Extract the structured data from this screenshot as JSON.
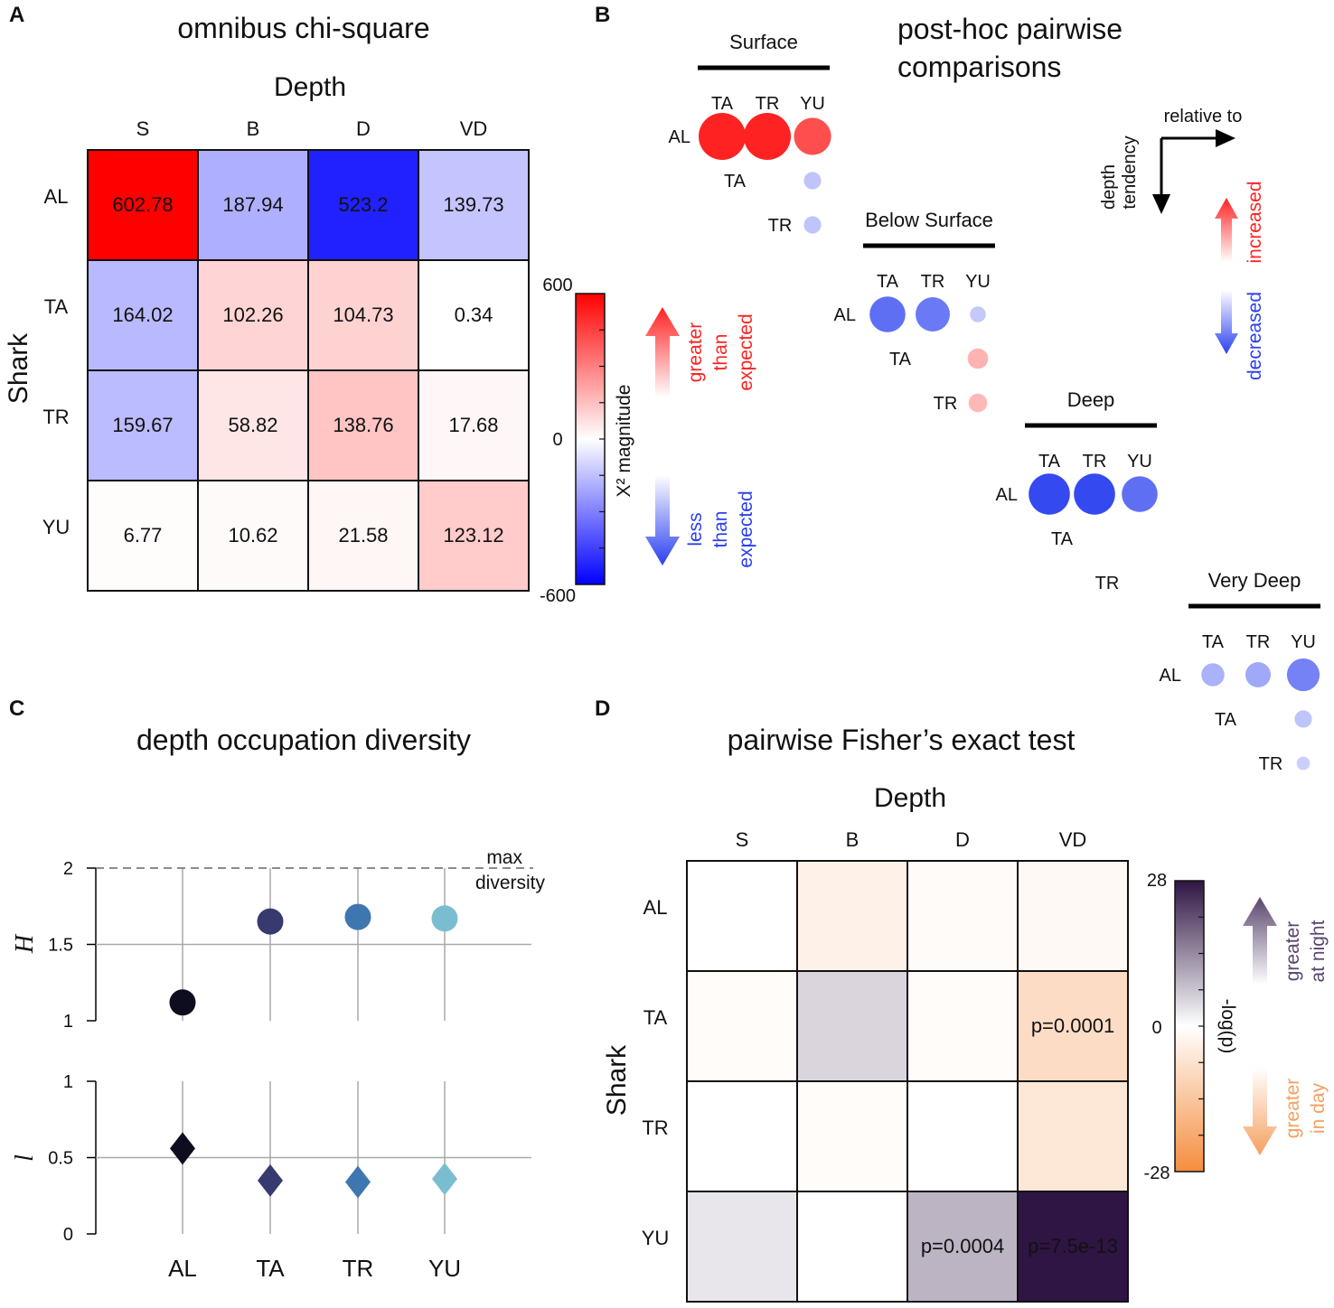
{
  "chart_data": [
    {
      "panel": "A",
      "type": "heatmap",
      "title": "omnibus chi-square",
      "xlabel": "Depth",
      "ylabel": "Shark",
      "columns": [
        "S",
        "B",
        "D",
        "VD"
      ],
      "rows": [
        "AL",
        "TA",
        "TR",
        "YU"
      ],
      "values": [
        [
          602.78,
          -187.94,
          -523.2,
          -139.73
        ],
        [
          -164.02,
          102.26,
          104.73,
          0.34
        ],
        [
          -159.67,
          58.82,
          138.76,
          17.68
        ],
        [
          6.77,
          10.62,
          21.58,
          123.12
        ]
      ],
      "cell_labels": [
        [
          "602.78",
          "187.94",
          "523.2",
          "139.73"
        ],
        [
          "164.02",
          "102.26",
          "104.73",
          "0.34"
        ],
        [
          "159.67",
          "58.82",
          "138.76",
          "17.68"
        ],
        [
          "6.77",
          "10.62",
          "21.58",
          "123.12"
        ]
      ],
      "colorbar": {
        "title": "X² magnitude",
        "max_label": "600",
        "mid_label": "0",
        "min_label": "-600",
        "range": [
          -600,
          600
        ],
        "colors": {
          "high": "#ff0000",
          "mid": "#ffffff",
          "low": "#0000ff"
        }
      },
      "arrow_up_text": [
        "greater",
        "than",
        "expected"
      ],
      "arrow_down_text": [
        "less",
        "than",
        "expected"
      ],
      "arrow_up_color": "#ff2222",
      "arrow_down_color": "#2a3ff0"
    },
    {
      "panel": "B",
      "type": "scatter",
      "title": [
        "post-hoc pairwise",
        "comparisons"
      ],
      "legend_direction_label": "relative to",
      "legend_vertical_label": [
        "depth",
        "tendency"
      ],
      "increased_label": "increased",
      "decreased_label": "decreased",
      "increased_color": "#ff2222",
      "decreased_color": "#2a3ff0",
      "col_labels": [
        "TA",
        "TR",
        "YU"
      ],
      "row_labels": [
        "AL",
        "TA",
        "TR"
      ],
      "groups": [
        {
          "name": "Surface",
          "points": [
            {
              "row": "AL",
              "col": "TA",
              "value": 1.0,
              "sign": 1
            },
            {
              "row": "AL",
              "col": "TR",
              "value": 1.0,
              "sign": 1
            },
            {
              "row": "AL",
              "col": "YU",
              "value": 0.6,
              "sign": 1
            },
            {
              "row": "TA",
              "col": "YU",
              "value": 0.1,
              "sign": -1
            },
            {
              "row": "TR",
              "col": "YU",
              "value": 0.1,
              "sign": -1
            }
          ]
        },
        {
          "name": "Below Surface",
          "points": [
            {
              "row": "AL",
              "col": "TA",
              "value": 0.55,
              "sign": -1
            },
            {
              "row": "AL",
              "col": "TR",
              "value": 0.5,
              "sign": -1
            },
            {
              "row": "AL",
              "col": "YU",
              "value": 0.08,
              "sign": -1
            },
            {
              "row": "TA",
              "col": "YU",
              "value": 0.15,
              "sign": 1
            },
            {
              "row": "TR",
              "col": "YU",
              "value": 0.12,
              "sign": 1
            }
          ]
        },
        {
          "name": "Deep",
          "points": [
            {
              "row": "AL",
              "col": "TA",
              "value": 0.75,
              "sign": -1
            },
            {
              "row": "AL",
              "col": "TR",
              "value": 0.75,
              "sign": -1
            },
            {
              "row": "AL",
              "col": "YU",
              "value": 0.55,
              "sign": -1
            }
          ]
        },
        {
          "name": "Very Deep",
          "points": [
            {
              "row": "AL",
              "col": "TA",
              "value": 0.2,
              "sign": -1
            },
            {
              "row": "AL",
              "col": "TR",
              "value": 0.25,
              "sign": -1
            },
            {
              "row": "AL",
              "col": "YU",
              "value": 0.45,
              "sign": -1
            },
            {
              "row": "TA",
              "col": "YU",
              "value": 0.1,
              "sign": -1
            },
            {
              "row": "TR",
              "col": "YU",
              "value": 0.05,
              "sign": -1
            }
          ]
        }
      ]
    },
    {
      "panel": "C",
      "type": "scatter",
      "title": "depth occupation diversity",
      "categories": [
        "AL",
        "TA",
        "TR",
        "YU"
      ],
      "colors": [
        "#0d0d1f",
        "#373a6f",
        "#3e77b0",
        "#7bbdd0"
      ],
      "max_line_label": [
        "max",
        "diversity"
      ],
      "subplots": [
        {
          "ylabel": "H",
          "ylim": [
            1,
            2
          ],
          "yticks": [
            "1",
            "1.5",
            "2"
          ],
          "max_line": 2,
          "marker": "circle",
          "values": [
            1.12,
            1.65,
            1.68,
            1.67
          ]
        },
        {
          "ylabel": "l",
          "ylim": [
            0,
            1
          ],
          "yticks": [
            "0",
            "0.5",
            "1"
          ],
          "marker": "diamond",
          "values": [
            0.56,
            0.35,
            0.34,
            0.36
          ]
        }
      ]
    },
    {
      "panel": "D",
      "type": "heatmap",
      "title": "pairwise Fisher’s exact test",
      "xlabel": "Depth",
      "ylabel": "Shark",
      "columns": [
        "S",
        "B",
        "D",
        "VD"
      ],
      "rows": [
        "AL",
        "TA",
        "TR",
        "YU"
      ],
      "values": [
        [
          0,
          -3.5,
          -1,
          -1.5
        ],
        [
          -0.8,
          5,
          -0.8,
          -8.5
        ],
        [
          0,
          -0.8,
          0,
          -6
        ],
        [
          3,
          0,
          9,
          28
        ]
      ],
      "cell_labels": [
        [
          "",
          "",
          "",
          ""
        ],
        [
          "",
          "",
          "",
          "p=0.0001"
        ],
        [
          "",
          "",
          "",
          ""
        ],
        [
          "",
          "",
          "p=0.0004",
          "p=7.5e-13"
        ]
      ],
      "colorbar": {
        "title": "-log(p)",
        "max_label": "28",
        "mid_label": "0",
        "min_label": "-28",
        "range": [
          -28,
          28
        ],
        "colors": {
          "high": "#2e1543",
          "mid": "#ffffff",
          "low": "#f58d3f"
        }
      },
      "arrow_up_text": [
        "greater",
        "at night"
      ],
      "arrow_down_text": [
        "greater",
        "in day"
      ],
      "arrow_up_color": "#5a466e",
      "arrow_down_color": "#f5a060"
    }
  ],
  "panel_letters": [
    "A",
    "B",
    "C",
    "D"
  ]
}
